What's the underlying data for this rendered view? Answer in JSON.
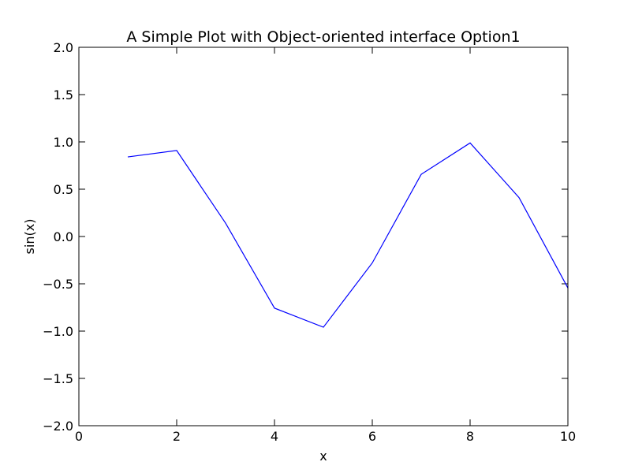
{
  "chart_data": {
    "type": "line",
    "title": "A Simple Plot with Object-oriented interface Option1",
    "xlabel": "x",
    "ylabel": "sin(x)",
    "xlim": [
      0,
      10
    ],
    "ylim": [
      -2.0,
      2.0
    ],
    "xticks": [
      0,
      2,
      4,
      6,
      8,
      10
    ],
    "xtick_labels": [
      "0",
      "2",
      "4",
      "6",
      "8",
      "10"
    ],
    "yticks": [
      -2.0,
      -1.5,
      -1.0,
      -0.5,
      0.0,
      0.5,
      1.0,
      1.5,
      2.0
    ],
    "ytick_labels": [
      "−2.0",
      "−1.5",
      "−1.0",
      "−0.5",
      "0.0",
      "0.5",
      "1.0",
      "1.5",
      "2.0"
    ],
    "grid": false,
    "series": [
      {
        "color": "#0000ff",
        "x": [
          1,
          2,
          3,
          4,
          5,
          6,
          7,
          8,
          9,
          10
        ],
        "y": [
          0.841,
          0.909,
          0.141,
          -0.757,
          -0.959,
          -0.279,
          0.657,
          0.989,
          0.412,
          -0.544
        ]
      }
    ]
  }
}
